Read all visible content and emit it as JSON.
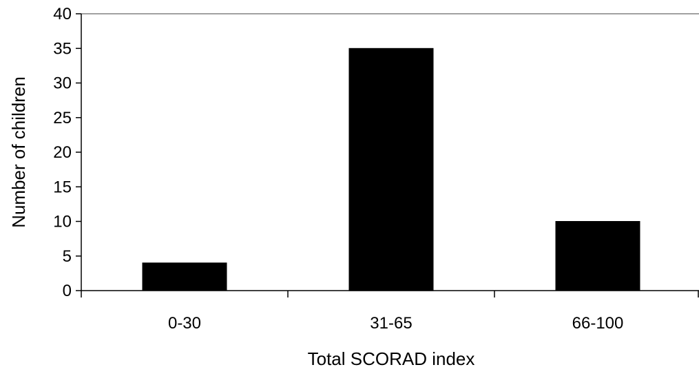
{
  "chart_data": {
    "type": "bar",
    "title": "",
    "xlabel": "Total SCORAD index",
    "ylabel": "Number of children",
    "categories": [
      "0-30",
      "31-65",
      "66-100"
    ],
    "values": [
      4,
      35,
      10
    ],
    "ylim": [
      0,
      40
    ],
    "yticks": [
      0,
      5,
      10,
      15,
      20,
      25,
      30,
      35,
      40
    ],
    "grid": false,
    "legend": "none",
    "bar_color": "#000000"
  }
}
